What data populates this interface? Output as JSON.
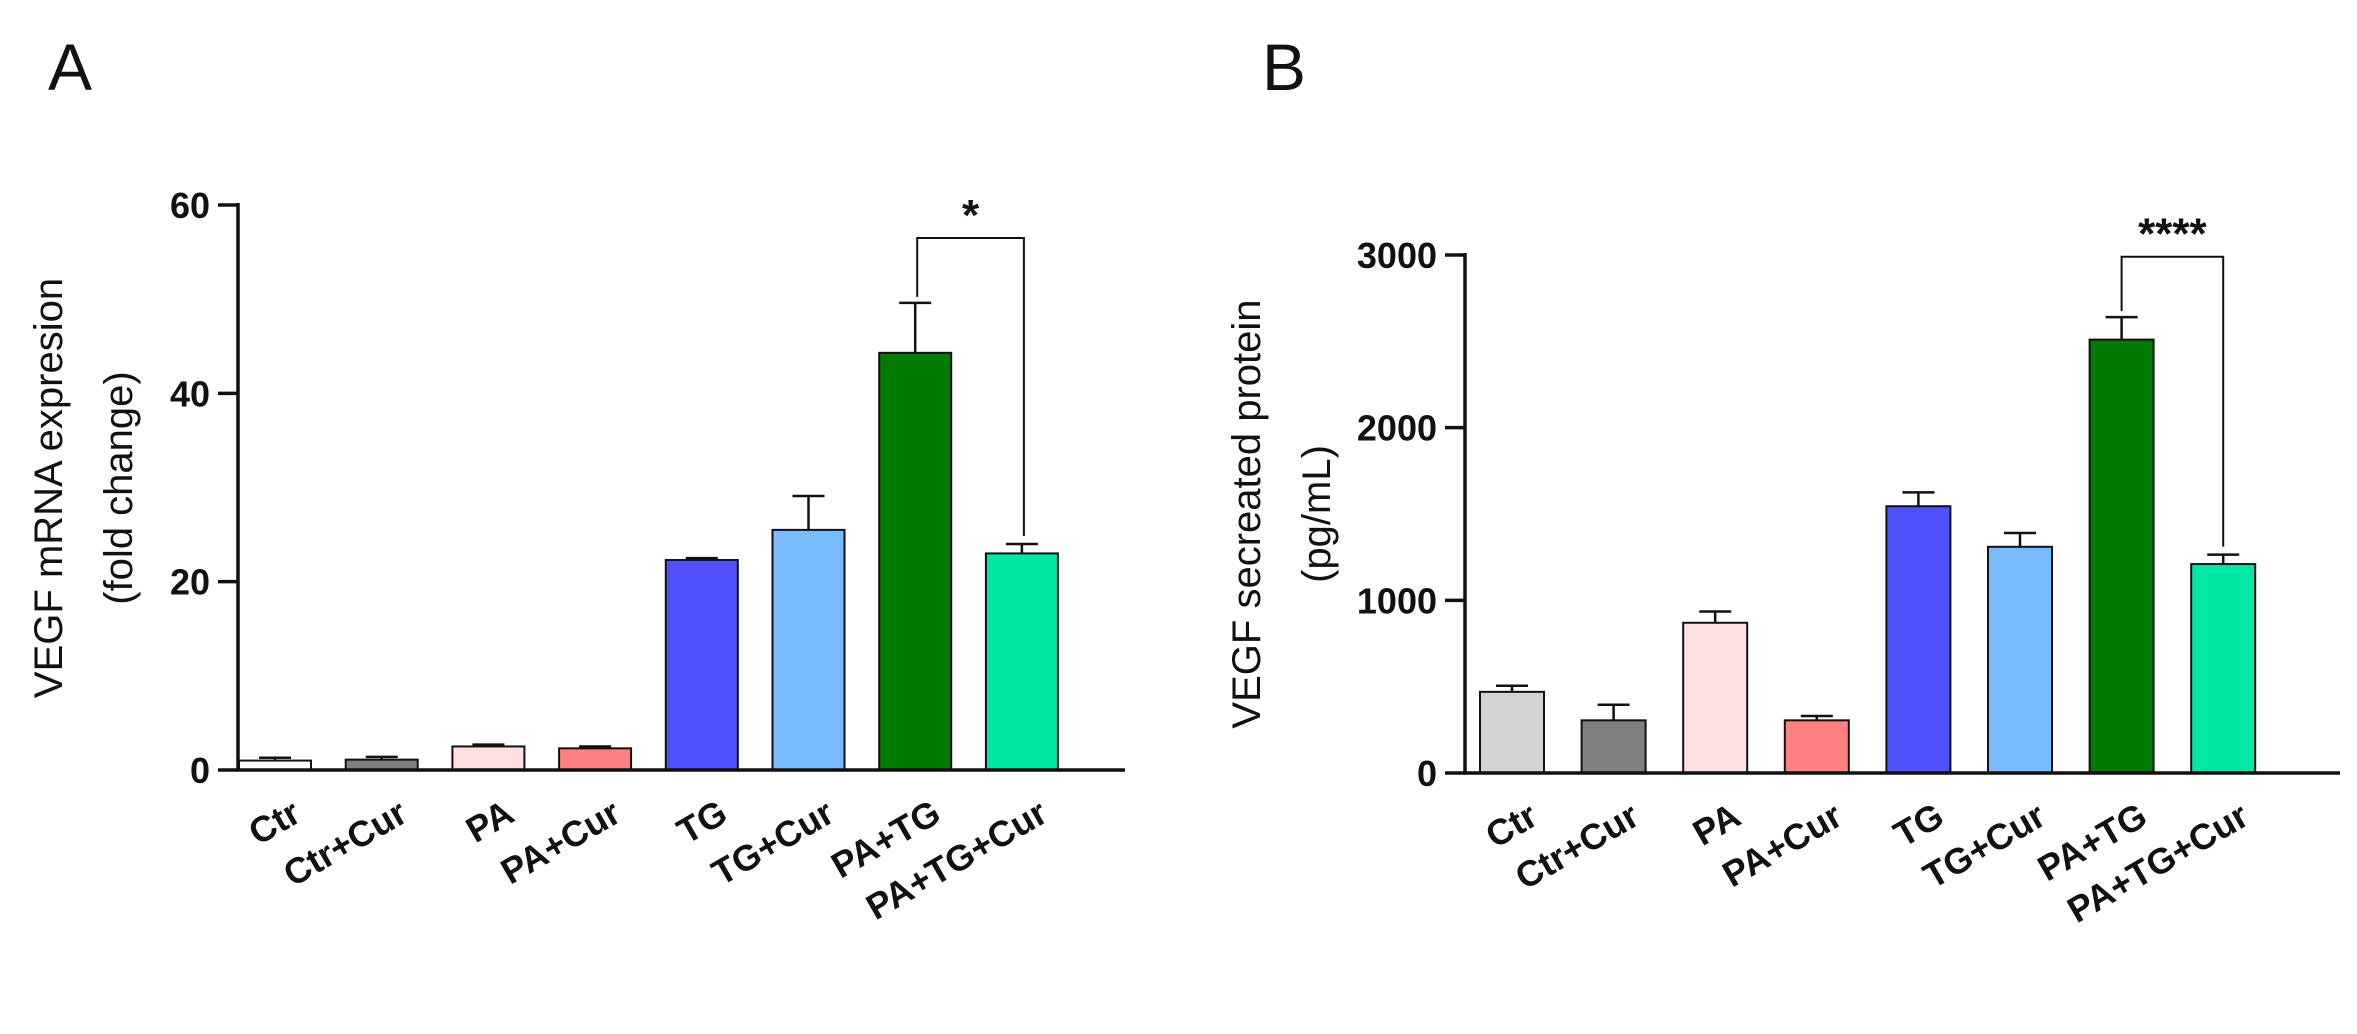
{
  "chart_data": [
    {
      "type": "bar",
      "panel": "A",
      "title": "",
      "xlabel": "",
      "ylabel_lines": [
        "VEGF mRNA expresion",
        "(fold change)"
      ],
      "ylim": [
        0,
        60
      ],
      "yticks": [
        0,
        20,
        40,
        60
      ],
      "yticks_text": [
        "0",
        "20",
        "40",
        "60"
      ],
      "categories": [
        "Ctr",
        "Ctr+Cur",
        "PA",
        "PA+Cur",
        "TG",
        "TG+Cur",
        "PA+TG",
        "PA+TG+Cur"
      ],
      "values": [
        1.0,
        1.1,
        2.5,
        2.3,
        22.3,
        25.5,
        44.3,
        23.0
      ],
      "errors": [
        0.3,
        0.3,
        0.2,
        0.2,
        0.2,
        3.6,
        5.3,
        1.0
      ],
      "colors": [
        "#ffffff",
        "#808080",
        "#ffe0e0",
        "#ff8080",
        "#5050ff",
        "#78bcff",
        "#007a00",
        "#00e8a6"
      ],
      "significance": {
        "from": 6,
        "to": 7,
        "label": "*",
        "bracket_level": 56.5
      },
      "grid": false
    },
    {
      "type": "bar",
      "panel": "B",
      "title": "",
      "xlabel": "",
      "ylabel_lines": [
        "VEGF secreated protein",
        "(pg/mL)"
      ],
      "ylim": [
        0,
        3000
      ],
      "yticks": [
        0,
        1000,
        2000,
        3000
      ],
      "yticks_text": [
        "0",
        "1000",
        "2000",
        "3000"
      ],
      "categories": [
        "Ctr",
        "Ctr+Cur",
        "PA",
        "PA+Cur",
        "TG",
        "TG+Cur",
        "PA+TG",
        "PA+TG+Cur"
      ],
      "values": [
        470,
        305,
        870,
        305,
        1545,
        1310,
        2510,
        1210
      ],
      "errors": [
        35,
        90,
        65,
        25,
        80,
        80,
        130,
        55
      ],
      "colors": [
        "#d3d3d3",
        "#808080",
        "#ffe0e0",
        "#ff8080",
        "#5050ff",
        "#78bcff",
        "#007a00",
        "#00e8a6"
      ],
      "significance": {
        "from": 6,
        "to": 7,
        "label": "****",
        "bracket_level": 2990
      },
      "grid": false
    }
  ]
}
